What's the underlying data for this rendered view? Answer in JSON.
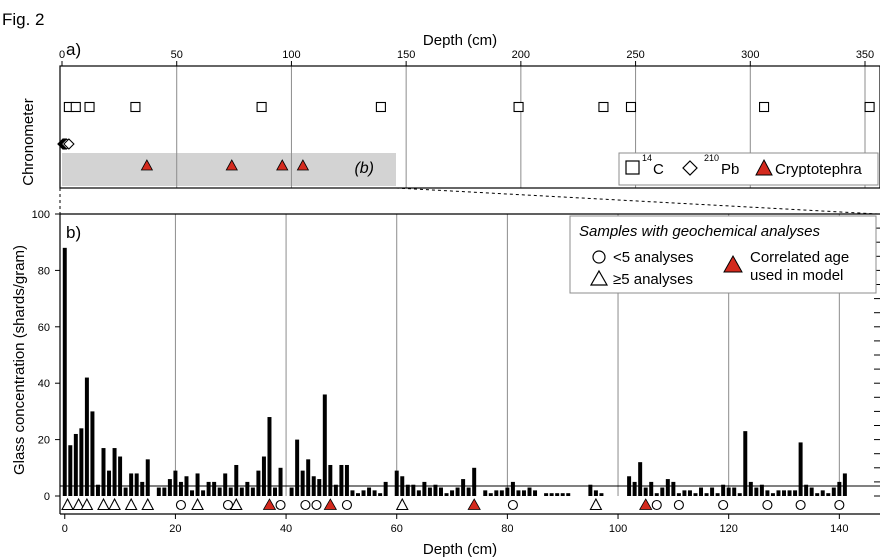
{
  "figure_label": "Fig. 2",
  "panel_a": {
    "label": "a)",
    "xlabel": "Depth (cm)",
    "ylabel": "Chronometer",
    "inset_label": "(b)"
  },
  "panel_b": {
    "label": "b)",
    "ylabel": "Glass concentration (shards/gram)",
    "xlabel": "Depth (cm)",
    "legend": {
      "title": "Samples with geochemical analyses",
      "circle_label": "<5 analyses",
      "triangle_label": "≥5 analyses",
      "red_label_line1": "Correlated age",
      "red_label_line2": "used in model"
    }
  },
  "legend_a": {
    "c14_prefix": "14",
    "c14_suffix": "C",
    "pb210_prefix": "210",
    "pb210_suffix": "Pb",
    "cryptotephra": "Cryptotephra"
  },
  "colors": {
    "red_marker": "#d42a1e",
    "bar": "#000000",
    "shade": "#d3d3d3",
    "gridline": "#8c8c8c",
    "legend_border": "#8c8c8c"
  },
  "chart_data": [
    {
      "type": "scatter",
      "panel": "a",
      "xlabel": "Depth (cm)",
      "ylabel": "Chronometer",
      "xlim": [
        0,
        350
      ],
      "xticks": [
        0,
        50,
        100,
        150,
        200,
        250,
        300,
        350
      ],
      "grid": true,
      "legend_position": "bottom-right",
      "series": [
        {
          "name": "14C",
          "marker": "square",
          "x": [
            3,
            6,
            12,
            32,
            87,
            139,
            199,
            236,
            248,
            306,
            352
          ]
        },
        {
          "name": "210Pb",
          "marker": "diamond",
          "x": [
            0.4,
            0.8,
            1.2,
            1.6,
            2.0,
            3.0
          ]
        },
        {
          "name": "Cryptotephra",
          "marker": "triangle",
          "color": "#d42a1e",
          "x": [
            37,
            74,
            96,
            105
          ]
        }
      ],
      "shaded_depth_range": [
        0,
        145
      ]
    },
    {
      "type": "bar",
      "panel": "b",
      "xlabel": "Depth (cm)",
      "ylabel": "Glass concentration (shards/gram)",
      "xlim": [
        -0.5,
        145
      ],
      "ylim": [
        0,
        100
      ],
      "xticks": [
        0,
        20,
        40,
        60,
        80,
        100,
        120,
        140
      ],
      "yticks": [
        0,
        20,
        40,
        60,
        80,
        100
      ],
      "grid": true,
      "legend_position": "top-right",
      "x": [
        0,
        1,
        2,
        3,
        4,
        5,
        6,
        7,
        8,
        9,
        10,
        11,
        12,
        13,
        14,
        15,
        16,
        17,
        18,
        19,
        20,
        21,
        22,
        23,
        24,
        25,
        26,
        27,
        28,
        29,
        30,
        31,
        32,
        33,
        34,
        35,
        36,
        37,
        38,
        39,
        40,
        41,
        42,
        43,
        44,
        45,
        46,
        47,
        48,
        49,
        50,
        51,
        52,
        53,
        54,
        55,
        56,
        57,
        58,
        59,
        60,
        61,
        62,
        63,
        64,
        65,
        66,
        67,
        68,
        69,
        70,
        71,
        72,
        73,
        74,
        75,
        76,
        77,
        78,
        79,
        80,
        81,
        82,
        83,
        84,
        85,
        86,
        87,
        88,
        89,
        90,
        91,
        92,
        93,
        94,
        95,
        96,
        97,
        98,
        99,
        100,
        101,
        102,
        103,
        104,
        105,
        106,
        107,
        108,
        109,
        110,
        111,
        112,
        113,
        114,
        115,
        116,
        117,
        118,
        119,
        120,
        121,
        122,
        123,
        124,
        125,
        126,
        127,
        128,
        129,
        130,
        131,
        132,
        133,
        134,
        135,
        136,
        137,
        138,
        139,
        140,
        141,
        142,
        143,
        144
      ],
      "values": [
        88,
        18,
        22,
        24,
        42,
        30,
        4,
        17,
        9,
        17,
        14,
        3,
        8,
        8,
        5,
        13,
        0,
        3,
        3,
        6,
        9,
        5,
        7,
        2,
        8,
        2,
        5,
        5,
        3,
        8,
        3,
        11,
        3,
        5,
        3,
        9,
        14,
        28,
        3,
        10,
        0,
        3,
        20,
        9,
        13,
        7,
        6,
        36,
        11,
        4,
        11,
        11,
        2,
        1,
        2,
        3,
        2,
        1,
        5,
        0,
        9,
        7,
        4,
        4,
        2,
        5,
        3,
        4,
        3,
        1,
        2,
        3,
        6,
        3,
        10,
        0,
        2,
        1,
        2,
        2,
        3,
        5,
        2,
        2,
        3,
        2,
        0,
        1,
        1,
        1,
        1,
        1,
        0,
        0,
        0,
        4,
        2,
        1,
        0,
        0,
        0,
        0,
        7,
        5,
        12,
        3,
        5,
        1,
        3,
        6,
        5,
        1,
        2,
        2,
        1,
        3,
        1,
        3,
        1,
        4,
        3,
        3,
        1,
        23,
        5,
        3,
        4,
        2,
        1,
        2,
        2,
        2,
        2,
        19,
        4,
        3,
        1,
        2,
        1,
        3,
        5,
        8,
        0,
        0,
        0
      ],
      "geochem_circles": [
        21,
        29.5,
        39,
        43.5,
        45.5,
        51,
        81,
        107,
        111,
        119,
        127,
        133,
        140
      ],
      "geochem_triangles": [
        0.5,
        2.5,
        4,
        7,
        9,
        12,
        15,
        24,
        31,
        61,
        96
      ],
      "correlated_age_triangles": [
        37,
        48,
        74,
        105
      ]
    }
  ]
}
